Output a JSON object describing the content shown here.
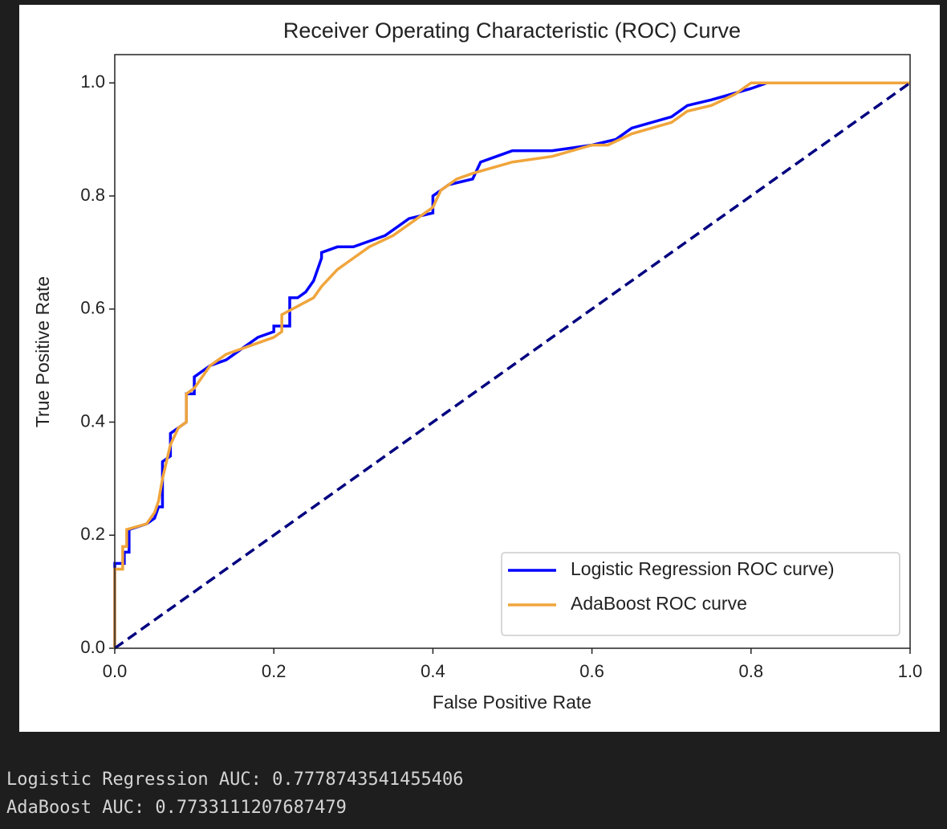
{
  "chart_data": {
    "type": "line",
    "title": "Receiver Operating Characteristic (ROC) Curve",
    "xlabel": "False Positive Rate",
    "ylabel": "True Positive Rate",
    "xlim": [
      0,
      1
    ],
    "ylim": [
      0,
      1.05
    ],
    "xticks": [
      {
        "value": 0,
        "label": "0.0"
      },
      0.2,
      0.4,
      0.6,
      0.8,
      {
        "value": 1,
        "label": "1.0"
      }
    ],
    "yticks": [
      {
        "value": 0,
        "label": "0.0"
      },
      0.2,
      0.4,
      0.6,
      0.8,
      {
        "value": 1,
        "label": "1.0"
      }
    ],
    "grid": false,
    "legend": "lower right",
    "series": [
      {
        "name": "Logistic Regression ROC curve)",
        "color": "#0000ff",
        "x": [
          0,
          0,
          0.012,
          0.012,
          0.018,
          0.018,
          0.04,
          0.05,
          0.055,
          0.06,
          0.06,
          0.07,
          0.07,
          0.08,
          0.09,
          0.09,
          0.1,
          0.1,
          0.11,
          0.12,
          0.14,
          0.15,
          0.16,
          0.17,
          0.18,
          0.2,
          0.2,
          0.22,
          0.22,
          0.23,
          0.24,
          0.25,
          0.26,
          0.26,
          0.28,
          0.3,
          0.32,
          0.34,
          0.36,
          0.37,
          0.4,
          0.4,
          0.42,
          0.45,
          0.46,
          0.48,
          0.5,
          0.55,
          0.6,
          0.63,
          0.65,
          0.7,
          0.72,
          0.75,
          0.8,
          0.82,
          1.0
        ],
        "values": [
          0,
          0.15,
          0.15,
          0.17,
          0.17,
          0.21,
          0.22,
          0.23,
          0.25,
          0.25,
          0.33,
          0.34,
          0.38,
          0.39,
          0.4,
          0.45,
          0.45,
          0.48,
          0.49,
          0.5,
          0.51,
          0.52,
          0.53,
          0.54,
          0.55,
          0.56,
          0.57,
          0.57,
          0.62,
          0.62,
          0.63,
          0.65,
          0.69,
          0.7,
          0.71,
          0.71,
          0.72,
          0.73,
          0.75,
          0.76,
          0.77,
          0.8,
          0.82,
          0.83,
          0.86,
          0.87,
          0.88,
          0.88,
          0.89,
          0.9,
          0.92,
          0.94,
          0.96,
          0.97,
          0.99,
          1.0,
          1.0
        ]
      },
      {
        "name": "AdaBoost ROC curve",
        "color": "#f0a53c",
        "x": [
          0,
          0,
          0.01,
          0.01,
          0.015,
          0.015,
          0.04,
          0.05,
          0.055,
          0.06,
          0.065,
          0.07,
          0.08,
          0.09,
          0.09,
          0.1,
          0.12,
          0.14,
          0.16,
          0.18,
          0.2,
          0.21,
          0.21,
          0.25,
          0.26,
          0.28,
          0.3,
          0.32,
          0.35,
          0.37,
          0.4,
          0.41,
          0.43,
          0.45,
          0.5,
          0.55,
          0.6,
          0.62,
          0.65,
          0.7,
          0.72,
          0.75,
          0.78,
          0.8,
          1.0
        ],
        "values": [
          0,
          0.14,
          0.14,
          0.18,
          0.18,
          0.21,
          0.22,
          0.24,
          0.26,
          0.3,
          0.33,
          0.36,
          0.39,
          0.4,
          0.45,
          0.46,
          0.5,
          0.52,
          0.53,
          0.54,
          0.55,
          0.56,
          0.59,
          0.62,
          0.64,
          0.67,
          0.69,
          0.71,
          0.73,
          0.75,
          0.78,
          0.81,
          0.83,
          0.84,
          0.86,
          0.87,
          0.89,
          0.89,
          0.91,
          0.93,
          0.95,
          0.96,
          0.98,
          1.0,
          1.0
        ]
      },
      {
        "color": "#000080",
        "linestyle": "dashed",
        "x": [
          0,
          1
        ],
        "values": [
          0,
          1
        ]
      }
    ]
  },
  "output": [
    "Logistic Regression AUC: 0.7778743541455406",
    "AdaBoost AUC: 0.7733111207687479"
  ]
}
